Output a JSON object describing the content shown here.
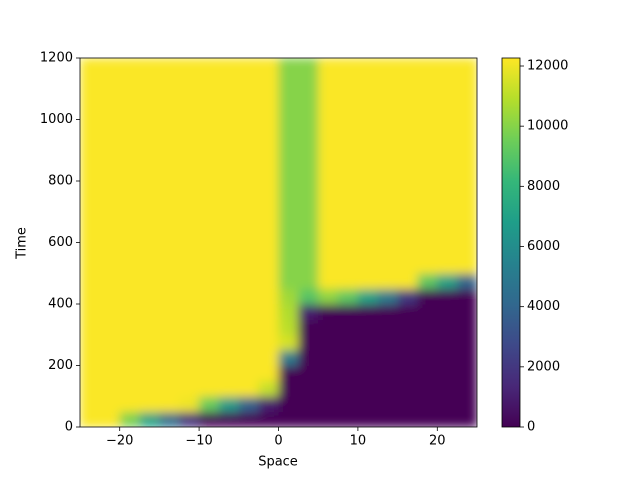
{
  "chart_data": {
    "type": "heatmap",
    "xlabel": "Space",
    "ylabel": "Time",
    "xlim": [
      -25,
      25
    ],
    "ylim": [
      0,
      1200
    ],
    "xticks": [
      {
        "value": -20,
        "label": "−20"
      },
      {
        "value": -10,
        "label": "−10"
      },
      0,
      10,
      20
    ],
    "yticks": [
      0,
      200,
      400,
      600,
      800,
      1000,
      1200
    ],
    "colormap": "viridis",
    "clim": [
      0,
      12266
    ],
    "cticks": [
      0,
      2000,
      4000,
      6000,
      8000,
      10000,
      12000
    ],
    "z": [
      [
        12200,
        12200,
        9800,
        7100,
        4500,
        1800,
        0,
        0,
        0,
        0,
        0,
        0,
        0,
        0,
        0,
        0,
        0,
        0,
        0,
        0
      ],
      [
        12200,
        12200,
        12200,
        12200,
        12200,
        12000,
        9400,
        6700,
        3900,
        1000,
        0,
        0,
        0,
        0,
        0,
        0,
        0,
        0,
        0,
        0
      ],
      [
        12200,
        12200,
        12200,
        12200,
        12200,
        12200,
        12200,
        12200,
        12200,
        11200,
        0,
        0,
        0,
        0,
        0,
        0,
        0,
        0,
        0,
        0
      ],
      [
        12200,
        12200,
        12200,
        12200,
        12200,
        12200,
        12200,
        12200,
        12200,
        12200,
        0,
        0,
        0,
        0,
        0,
        0,
        0,
        0,
        0,
        0
      ],
      [
        12200,
        12200,
        12200,
        12200,
        12200,
        12200,
        12200,
        12200,
        12200,
        12200,
        5100,
        0,
        0,
        0,
        0,
        0,
        0,
        0,
        0,
        0
      ],
      [
        12200,
        12200,
        12200,
        12200,
        12200,
        12200,
        12200,
        12200,
        12200,
        12200,
        11500,
        0,
        0,
        0,
        0,
        0,
        0,
        0,
        0,
        0
      ],
      [
        12200,
        12200,
        12200,
        12200,
        12200,
        12200,
        12200,
        12200,
        12200,
        12200,
        11000,
        0,
        0,
        0,
        0,
        0,
        0,
        0,
        0,
        0
      ],
      [
        12200,
        12200,
        12200,
        12200,
        12200,
        12200,
        12200,
        12200,
        12200,
        12200,
        10800,
        1000,
        0,
        0,
        0,
        0,
        0,
        0,
        0,
        0
      ],
      [
        12200,
        12200,
        12200,
        12200,
        12200,
        12200,
        12200,
        12200,
        12200,
        12200,
        10500,
        9000,
        10200,
        9200,
        7100,
        5100,
        2000,
        0,
        0,
        0
      ],
      [
        12200,
        12200,
        12200,
        12200,
        12200,
        12200,
        12200,
        12200,
        12200,
        12200,
        10000,
        10000,
        12200,
        12200,
        12200,
        12200,
        12200,
        9200,
        7100,
        4100
      ],
      [
        12200,
        12200,
        12200,
        12200,
        12200,
        12200,
        12200,
        12200,
        12200,
        12200,
        10000,
        10000,
        12200,
        12200,
        12200,
        12200,
        12200,
        12200,
        12200,
        12200
      ],
      [
        12200,
        12200,
        12200,
        12200,
        12200,
        12200,
        12200,
        12200,
        12200,
        12200,
        10000,
        10000,
        12200,
        12200,
        12200,
        12200,
        12200,
        12200,
        12200,
        12200
      ],
      [
        12200,
        12200,
        12200,
        12200,
        12200,
        12200,
        12200,
        12200,
        12200,
        12200,
        10000,
        10000,
        12200,
        12200,
        12200,
        12200,
        12200,
        12200,
        12200,
        12200
      ],
      [
        12200,
        12200,
        12200,
        12200,
        12200,
        12200,
        12200,
        12200,
        12200,
        12200,
        10000,
        10000,
        12200,
        12200,
        12200,
        12200,
        12200,
        12200,
        12200,
        12200
      ],
      [
        12200,
        12200,
        12200,
        12200,
        12200,
        12200,
        12200,
        12200,
        12200,
        12200,
        10000,
        10000,
        12200,
        12200,
        12200,
        12200,
        12200,
        12200,
        12200,
        12200
      ],
      [
        12200,
        12200,
        12200,
        12200,
        12200,
        12200,
        12200,
        12200,
        12200,
        12200,
        10000,
        10000,
        12200,
        12200,
        12200,
        12200,
        12200,
        12200,
        12200,
        12200
      ],
      [
        12200,
        12200,
        12200,
        12200,
        12200,
        12200,
        12200,
        12200,
        12200,
        12200,
        10000,
        10000,
        12200,
        12200,
        12200,
        12200,
        12200,
        12200,
        12200,
        12200
      ],
      [
        12200,
        12200,
        12200,
        12200,
        12200,
        12200,
        12200,
        12200,
        12200,
        12200,
        10000,
        10000,
        12200,
        12200,
        12200,
        12200,
        12200,
        12200,
        12200,
        12200
      ],
      [
        12200,
        12200,
        12200,
        12200,
        12200,
        12200,
        12200,
        12200,
        12200,
        12200,
        10000,
        10000,
        12200,
        12200,
        12200,
        12200,
        12200,
        12200,
        12200,
        12200
      ],
      [
        12200,
        12200,
        12200,
        12200,
        12200,
        12200,
        12200,
        12200,
        12200,
        12200,
        10000,
        10000,
        12200,
        12200,
        12200,
        12200,
        12200,
        12200,
        12200,
        12200
      ],
      [
        12200,
        12200,
        12200,
        12200,
        12200,
        12200,
        12200,
        12200,
        12200,
        12200,
        10000,
        10000,
        12200,
        12200,
        12200,
        12200,
        12200,
        12200,
        12200,
        12200
      ],
      [
        12200,
        12200,
        12200,
        12200,
        12200,
        12200,
        12200,
        12200,
        12200,
        12200,
        10000,
        10000,
        12200,
        12200,
        12200,
        12200,
        12200,
        12200,
        12200,
        12200
      ],
      [
        12200,
        12200,
        12200,
        12200,
        12200,
        12200,
        12200,
        12200,
        12200,
        12200,
        10000,
        10000,
        12200,
        12200,
        12200,
        12200,
        12200,
        12200,
        12200,
        12200
      ],
      [
        12200,
        12200,
        12200,
        12200,
        12200,
        12200,
        12200,
        12200,
        12200,
        12200,
        10000,
        10000,
        12200,
        12200,
        12200,
        12200,
        12200,
        12200,
        12200,
        12200
      ]
    ]
  }
}
